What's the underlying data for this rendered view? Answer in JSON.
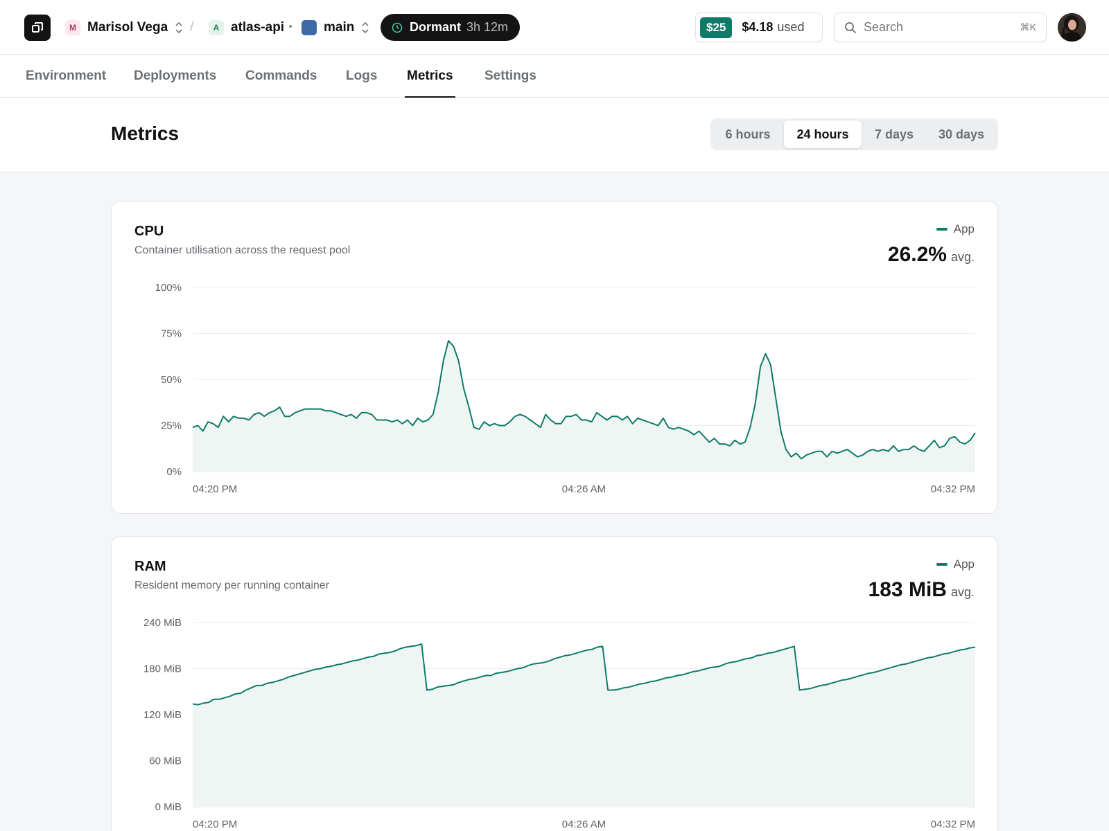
{
  "header": {
    "workspace": {
      "initial": "M",
      "name": "Marisol Vega"
    },
    "separator": "/",
    "project": {
      "initial": "A",
      "name": "atlas-api"
    },
    "branch": {
      "name": "main"
    },
    "status": {
      "label": "Dormant",
      "time": "3h 12m"
    },
    "usage": {
      "credit": "$25",
      "amount": "$4.18",
      "label": "used"
    },
    "search": {
      "placeholder": "Search",
      "shortcut": "⌘K"
    }
  },
  "tabs": [
    {
      "label": "Environment",
      "active": false
    },
    {
      "label": "Deployments",
      "active": false
    },
    {
      "label": "Commands",
      "active": false
    },
    {
      "label": "Logs",
      "active": false
    },
    {
      "label": "Metrics",
      "active": true
    },
    {
      "label": "Settings",
      "active": false
    }
  ],
  "page": {
    "title": "Metrics",
    "ranges": [
      "6 hours",
      "24 hours",
      "7 days",
      "30 days"
    ],
    "selected_range": "24 hours"
  },
  "colors": {
    "accent": "#0f7a68",
    "area_fill": "#eef5f3",
    "grid": "#ececec"
  },
  "icons": {
    "logo": "window-stack-icon",
    "status": "clock-icon",
    "search": "search-icon",
    "switcher": "chevron-up-down-icon"
  },
  "cards": {
    "cpu": {
      "title": "CPU",
      "subtitle": "Container utilisation across the request pool",
      "legend": "App",
      "stat_value": "26.2%",
      "stat_label": "avg."
    },
    "ram": {
      "title": "RAM",
      "subtitle": "Resident memory per running container",
      "legend": "App",
      "stat_value": "183 MiB",
      "stat_label": "avg."
    }
  },
  "chart_data": [
    {
      "type": "area",
      "title": "CPU",
      "y_ticks": [
        "0%",
        "25%",
        "50%",
        "75%",
        "100%"
      ],
      "ylim": [
        0,
        100
      ],
      "x_ticks": [
        "04:20 PM",
        "04:26 AM",
        "04:32 PM"
      ],
      "grid": true,
      "series": [
        {
          "name": "App",
          "values": [
            24,
            25,
            22,
            27,
            26,
            24,
            30,
            27,
            30,
            29,
            29,
            28,
            31,
            32,
            30,
            32,
            33,
            35,
            30,
            30,
            32,
            33,
            34,
            34,
            34,
            34,
            33,
            33,
            32,
            31,
            30,
            31,
            29,
            32,
            32,
            31,
            28,
            28,
            28,
            27,
            28,
            26,
            28,
            25,
            29,
            27,
            28,
            31,
            43,
            60,
            71,
            68,
            60,
            45,
            35,
            24,
            23,
            27,
            25,
            26,
            25,
            25,
            27,
            30,
            31,
            30,
            28,
            26,
            24,
            31,
            28,
            26,
            26,
            30,
            30,
            31,
            28,
            28,
            27,
            32,
            30,
            28,
            30,
            30,
            28,
            30,
            26,
            29,
            28,
            27,
            26,
            25,
            29,
            24,
            23,
            24,
            23,
            22,
            20,
            22,
            19,
            16,
            18,
            15,
            15,
            14,
            17,
            15,
            16,
            24,
            37,
            57,
            64,
            58,
            40,
            22,
            12,
            8,
            10,
            7,
            9,
            10,
            11,
            11,
            8,
            11,
            10,
            11,
            12,
            10,
            8,
            9,
            11,
            12,
            11,
            12,
            11,
            14,
            11,
            12,
            12,
            14,
            12,
            11,
            14,
            17,
            13,
            14,
            18,
            19,
            16,
            15,
            17,
            21
          ]
        }
      ]
    },
    {
      "type": "area",
      "title": "RAM",
      "y_ticks": [
        "0 MiB",
        "60 MiB",
        "120 MiB",
        "180 MiB",
        "240 MiB"
      ],
      "ylim": [
        0,
        240
      ],
      "x_ticks": [
        "04:20 PM",
        "04:26 AM",
        "04:32 PM"
      ],
      "grid": true,
      "series": [
        {
          "name": "App",
          "values": [
            134,
            133,
            135,
            136,
            140,
            140,
            142,
            144,
            147,
            148,
            152,
            155,
            158,
            158,
            161,
            162,
            164,
            166,
            169,
            171,
            173,
            175,
            177,
            179,
            180,
            182,
            183,
            185,
            186,
            188,
            190,
            191,
            193,
            195,
            196,
            199,
            200,
            201,
            203,
            206,
            208,
            209,
            210,
            212,
            152,
            153,
            156,
            157,
            158,
            159,
            162,
            164,
            166,
            167,
            169,
            171,
            171,
            174,
            175,
            176,
            178,
            180,
            181,
            184,
            186,
            187,
            188,
            190,
            193,
            195,
            197,
            198,
            200,
            202,
            204,
            205,
            208,
            209,
            152,
            152,
            153,
            155,
            156,
            158,
            160,
            161,
            163,
            164,
            166,
            168,
            169,
            171,
            172,
            174,
            176,
            177,
            179,
            181,
            182,
            183,
            186,
            188,
            189,
            191,
            193,
            194,
            197,
            198,
            200,
            201,
            203,
            205,
            207,
            209,
            152,
            153,
            154,
            156,
            158,
            159,
            161,
            163,
            165,
            166,
            168,
            170,
            172,
            174,
            175,
            177,
            179,
            181,
            183,
            185,
            186,
            188,
            190,
            192,
            194,
            195,
            197,
            199,
            200,
            202,
            204,
            205,
            207,
            208
          ]
        }
      ]
    }
  ]
}
